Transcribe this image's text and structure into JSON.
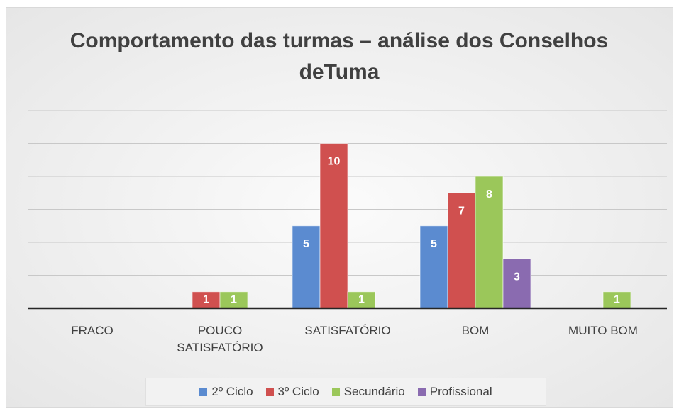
{
  "chart_data": {
    "type": "bar",
    "title": "Comportamento das turmas – análise dos Conselhos deTuma",
    "categories": [
      "FRACO",
      "POUCO SATISFATÓRIO",
      "SATISFATÓRIO",
      "BOM",
      "MUITO BOM"
    ],
    "series": [
      {
        "name": "2º Ciclo",
        "color": "#5b8bd0",
        "values": [
          null,
          null,
          5,
          5,
          null
        ]
      },
      {
        "name": "3º Ciclo",
        "color": "#d0504f",
        "values": [
          null,
          1,
          10,
          7,
          null
        ]
      },
      {
        "name": "Secundário",
        "color": "#9bc75a",
        "values": [
          null,
          1,
          1,
          8,
          1
        ]
      },
      {
        "name": "Profissional",
        "color": "#8a6bb0",
        "values": [
          null,
          null,
          null,
          3,
          null
        ]
      }
    ],
    "ylim": [
      0,
      12
    ],
    "yticks": [
      0,
      2,
      4,
      6,
      8,
      10,
      12
    ],
    "grid": true
  }
}
